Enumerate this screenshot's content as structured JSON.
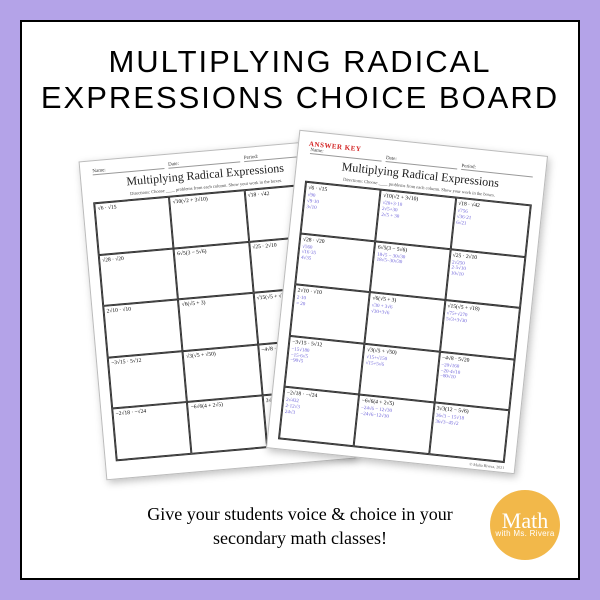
{
  "frame": {
    "border_color": "#000000",
    "background": "#ffffff",
    "outer_background": "#b4a3e8"
  },
  "title_line1": "MULTIPLYING RADICAL",
  "title_line2": "EXPRESSIONS CHOICE BOARD",
  "tagline_line1": "Give your students voice & choice in your",
  "tagline_line2": "secondary math classes!",
  "logo": {
    "line1": "Math",
    "line2": "with Ms. Rivera",
    "fill": "#f2b84a",
    "text_color": "#ffffff"
  },
  "worksheet": {
    "header_name": "Name:",
    "header_date": "Date:",
    "header_period": "Period:",
    "title": "Multiplying Radical Expressions",
    "directions": "Directions: Choose ____ problems from each column. Show your work in the boxes.",
    "answer_key_label": "ANSWER KEY",
    "copyright": "© Malia Rivera, 2021",
    "problems": [
      "√6 · √15",
      "√10(√2 + 3√10)",
      "√18 · √42",
      "√28 · √20",
      "6√5(3 − 5√6)",
      "√25 · 2√10",
      "2√10 · √10",
      "√6(√5 + 3)",
      "√15(√5 + √18)",
      "−3√15 · 5√12",
      "√3(√5 + √50)",
      "−4√8 · 5√20",
      "−2√18 · −√24",
      "−6√6(4 + 2√5)",
      "3√3(12 − 5√6)"
    ],
    "work": [
      "√90\n√9·10\n3√10",
      "√20+3·10\n2√5+30\n2√5 + 30",
      "√756\n√36·21\n6√21",
      "√560\n√16·35\n4√35",
      "18√5 − 30√30\n18√5−30√30",
      "2√250\n2·5√10\n10√10",
      "2·10\n= 20",
      "√30 + 3√6\n√30+3√6",
      "√75+√270\n5√3+3√30",
      "−15√180\n−15·6√5\n−90√5",
      "√15+√150\n√15+5√6",
      "−20√160\n−20·4√10\n−80√10",
      "2√432\n2·12√3\n24√3",
      "−24√6 − 12√30\n−24√6−12√30",
      "36√3 − 15√18\n36√3−45√2"
    ],
    "style": {
      "work_color": "#6a5fd8",
      "answer_key_color": "#d22020",
      "grid_border": "#333333",
      "columns": 3,
      "rows": 5
    }
  }
}
